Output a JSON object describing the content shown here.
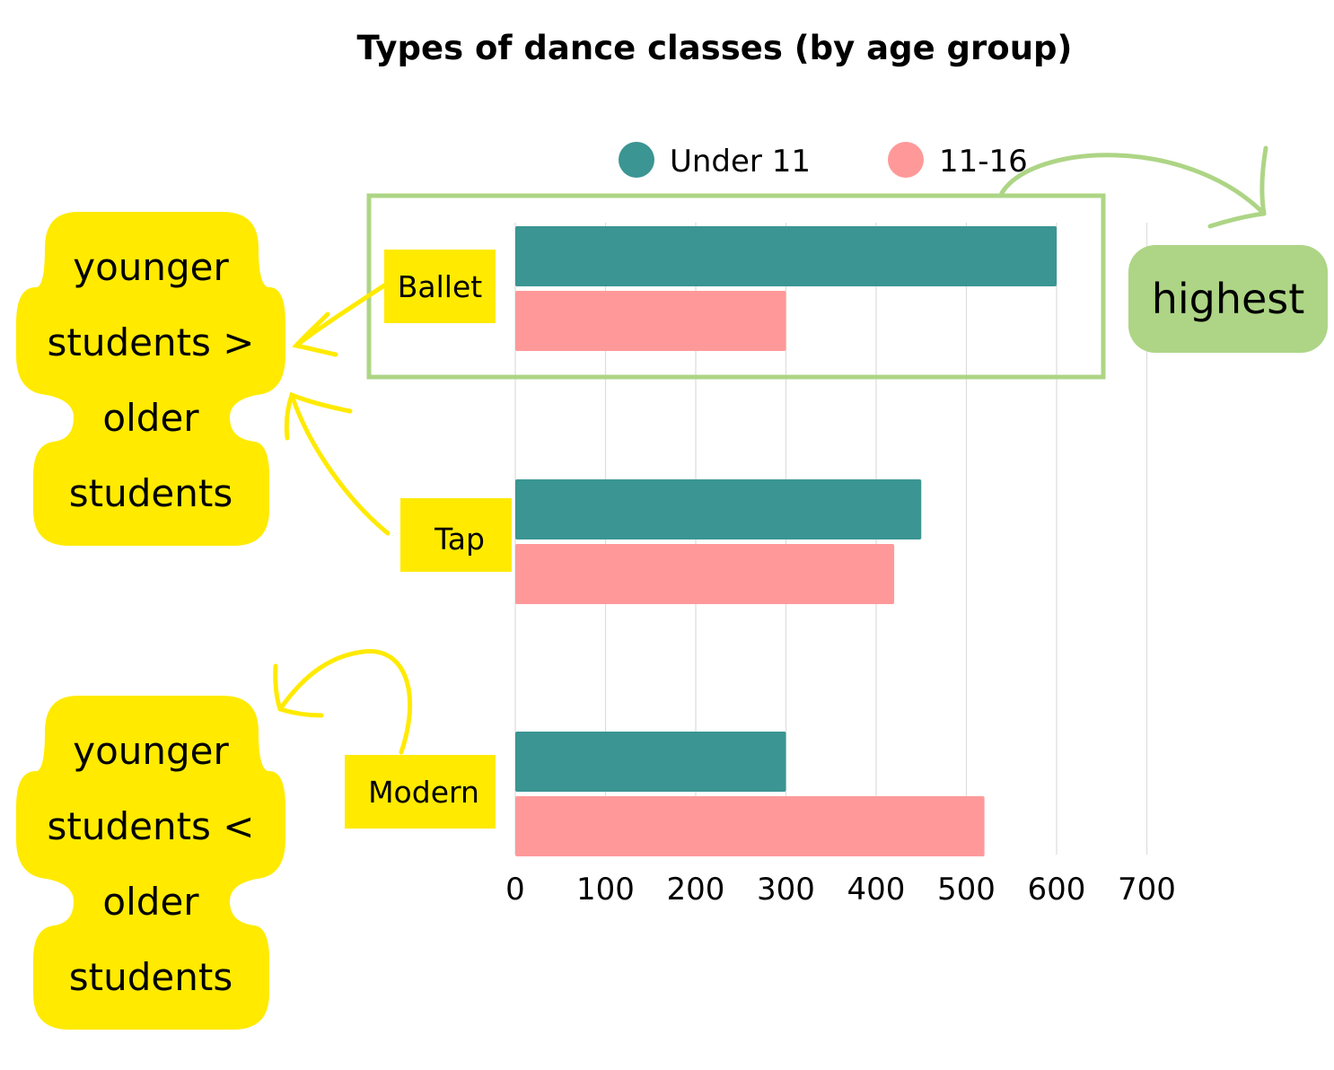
{
  "chart_data": {
    "type": "bar",
    "orientation": "horizontal",
    "title": "Types of dance classes (by age group)",
    "categories": [
      "Ballet",
      "Tap",
      "Modern"
    ],
    "series": [
      {
        "name": "Under 11",
        "color": "#3a9593",
        "values": [
          600,
          450,
          300
        ]
      },
      {
        "name": "11-16",
        "color": "#ff9999",
        "values": [
          300,
          420,
          520
        ]
      }
    ],
    "x_ticks": [
      "0",
      "100",
      "200",
      "300",
      "400",
      "500",
      "600",
      "700"
    ],
    "xlim": [
      0,
      700
    ],
    "grid": "vertical",
    "legend_position": "top",
    "highlighted_category": "Ballet"
  },
  "annotations": {
    "highest_label": "highest",
    "note_top": [
      "younger",
      "students >",
      "older",
      "students"
    ],
    "note_bottom": [
      "younger",
      "students <",
      "older",
      "students"
    ]
  },
  "colors": {
    "note_yellow": "#ffea00",
    "highlight_green": "#add585"
  }
}
